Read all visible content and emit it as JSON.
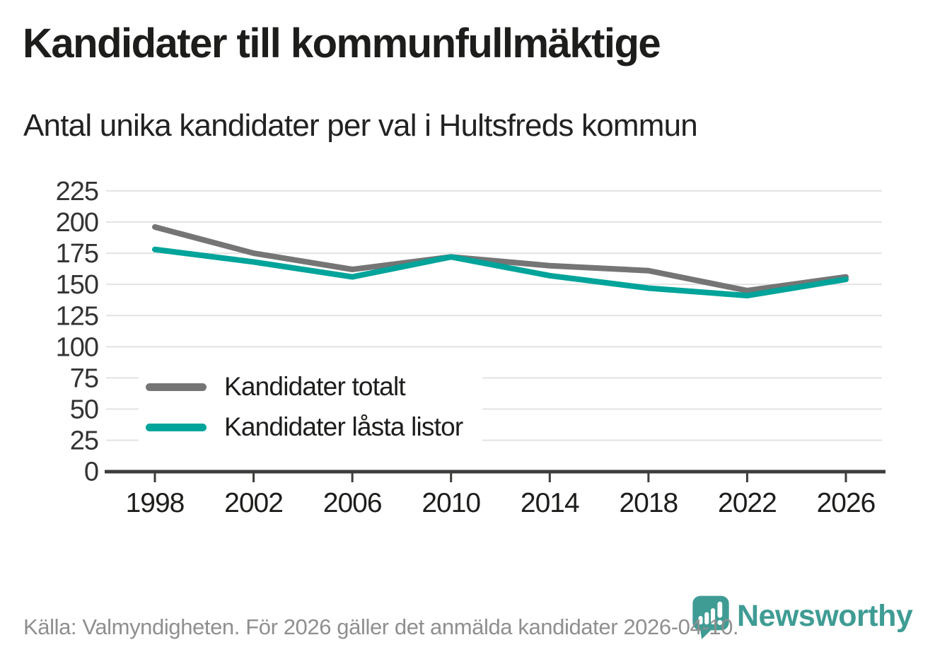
{
  "header": {
    "title": "Kandidater till kommunfullmäktige",
    "subtitle": "Antal unika kandidater per val i Hultsfreds kommun"
  },
  "chart_data": {
    "type": "line",
    "title": "Kandidater till kommunfullmäktige",
    "subtitle": "Antal unika kandidater per val i Hultsfreds kommun",
    "categories": [
      "1998",
      "2002",
      "2006",
      "2010",
      "2014",
      "2018",
      "2022",
      "2026"
    ],
    "series": [
      {
        "name": "Kandidater totalt",
        "color": "#757575",
        "values": [
          196,
          175,
          162,
          172,
          165,
          161,
          145,
          156
        ]
      },
      {
        "name": "Kandidater låsta listor",
        "color": "#00a49a",
        "values": [
          178,
          168,
          156,
          172,
          157,
          147,
          141,
          154
        ]
      }
    ],
    "xlabel": "",
    "ylabel": "",
    "ylim": [
      0,
      225
    ],
    "yticks": [
      0,
      25,
      50,
      75,
      100,
      125,
      150,
      175,
      200,
      225
    ],
    "grid": "horizontal",
    "legend_position": "inside-bottom-left",
    "colors": {
      "gridline": "#e3e3e3",
      "axis": "#3c3c3b",
      "tick_label": "#333333",
      "x_label": "#1d1d1b"
    }
  },
  "footer": {
    "source_text": "Källa: Valmyndigheten. För 2026 gäller det anmälda kandidater 2026-04-10."
  },
  "logo": {
    "text": "Newsworthy",
    "color": "#3f9c94",
    "icon": "newsworthy-speech-bubble-barchart-icon"
  }
}
